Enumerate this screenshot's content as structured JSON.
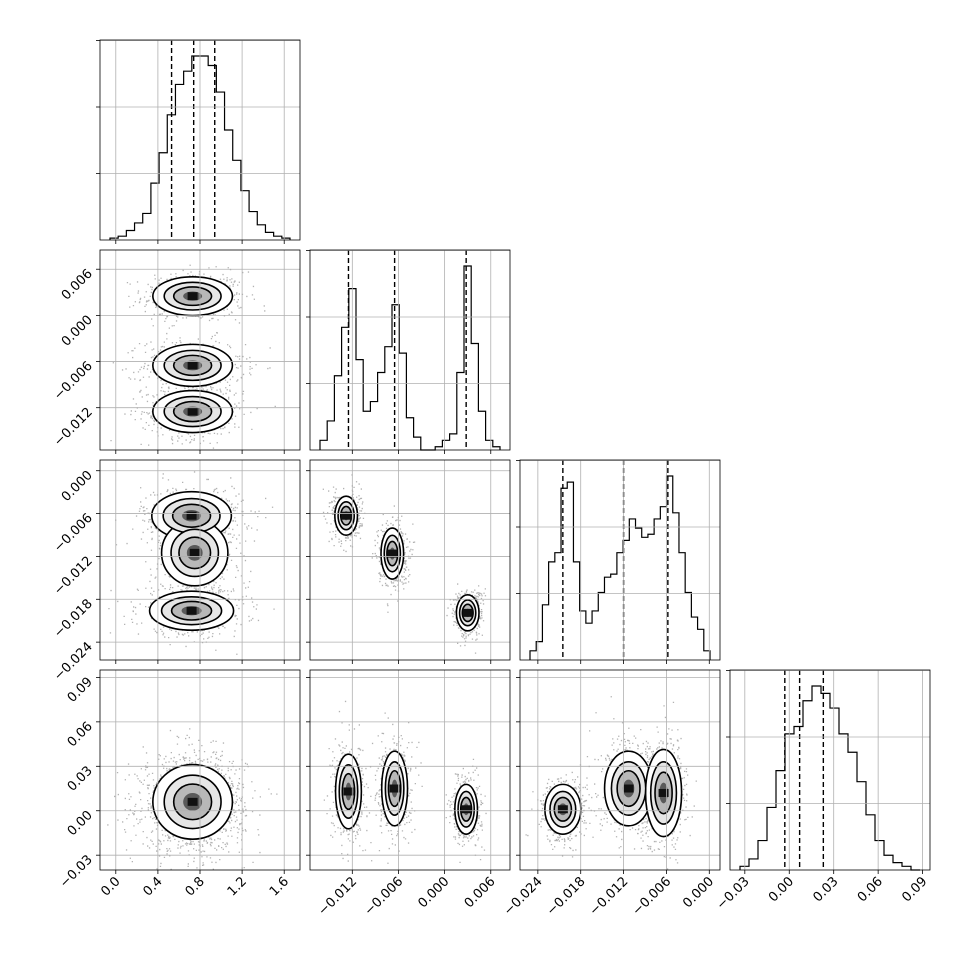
{
  "chart_data": {
    "type": "corner",
    "title": "",
    "n_params": 4,
    "grid": true,
    "parameters": [
      {
        "range": [
          -0.15,
          1.75
        ],
        "ticks": [
          "0.0",
          "0.4",
          "0.8",
          "1.2",
          "1.6"
        ],
        "tick_values": [
          0.0,
          0.4,
          0.8,
          1.2,
          1.6
        ],
        "quantiles": [
          0.53,
          0.74,
          0.94
        ]
      },
      {
        "range": [
          -0.0175,
          0.0085
        ],
        "ticks": [
          "−0.012",
          "−0.006",
          "0.000",
          "0.006"
        ],
        "tick_values": [
          -0.012,
          -0.006,
          0.0,
          0.006
        ],
        "quantiles": [
          -0.0125,
          -0.0065,
          0.0028
        ]
      },
      {
        "range": [
          -0.0265,
          0.0015
        ],
        "ticks": [
          "−0.024",
          "−0.018",
          "−0.012",
          "−0.006",
          "0.000"
        ],
        "tick_values": [
          -0.024,
          -0.018,
          -0.012,
          -0.006,
          0.0
        ],
        "quantiles": [
          -0.0205,
          -0.012,
          -0.0058
        ]
      },
      {
        "range": [
          -0.04,
          0.095
        ],
        "ticks": [
          "−0.03",
          "0.00",
          "0.03",
          "0.06",
          "0.09"
        ],
        "tick_values": [
          -0.03,
          0.0,
          0.03,
          0.06,
          0.09
        ],
        "quantiles": [
          -0.003,
          0.007,
          0.023
        ]
      }
    ],
    "histograms": [
      {
        "param": 0,
        "counts": [
          1,
          2,
          5,
          9,
          14,
          30,
          46,
          66,
          82,
          89,
          97,
          97,
          92,
          78,
          58,
          42,
          26,
          15,
          8,
          4,
          2,
          1
        ]
      },
      {
        "param": 1,
        "counts": [
          3,
          9,
          23,
          38,
          50,
          28,
          12,
          15,
          24,
          32,
          45,
          30,
          10,
          4,
          0,
          0,
          1,
          3,
          5,
          24,
          57,
          33,
          12,
          3,
          1
        ]
      },
      {
        "param": 2,
        "counts": [
          3,
          6,
          18,
          32,
          35,
          56,
          58,
          32,
          16,
          12,
          16,
          22,
          27,
          28,
          35,
          39,
          46,
          43,
          40,
          41,
          46,
          50,
          60,
          48,
          35,
          22,
          14,
          10,
          3
        ]
      },
      {
        "param": 3,
        "counts": [
          1,
          3,
          8,
          17,
          27,
          37,
          39,
          46,
          50,
          48,
          44,
          37,
          32,
          24,
          15,
          8,
          4,
          2,
          1,
          0
        ]
      }
    ],
    "joint_panels": [
      {
        "x": 0,
        "y": 1,
        "modes": [
          {
            "mx": 0.73,
            "my": 0.0025,
            "sx": 0.18,
            "sy": 0.0012,
            "w": 0.34
          },
          {
            "mx": 0.73,
            "my": -0.0065,
            "sx": 0.18,
            "sy": 0.0013,
            "w": 0.33
          },
          {
            "mx": 0.73,
            "my": -0.0125,
            "sx": 0.18,
            "sy": 0.0013,
            "w": 0.33
          }
        ]
      },
      {
        "x": 0,
        "y": 2,
        "modes": [
          {
            "mx": 0.72,
            "my": -0.0063,
            "sx": 0.18,
            "sy": 0.0016,
            "w": 0.34
          },
          {
            "mx": 0.75,
            "my": -0.0115,
            "sx": 0.15,
            "sy": 0.0022,
            "w": 0.28
          },
          {
            "mx": 0.72,
            "my": -0.0196,
            "sx": 0.19,
            "sy": 0.0013,
            "w": 0.38
          }
        ]
      },
      {
        "x": 0,
        "y": 3,
        "modes": [
          {
            "mx": 0.73,
            "my": 0.006,
            "sx": 0.18,
            "sy": 0.012,
            "w": 1.0
          }
        ]
      },
      {
        "x": 1,
        "y": 2,
        "modes": [
          {
            "mx": -0.0128,
            "my": -0.0063,
            "sx": 0.0007,
            "sy": 0.0013,
            "w": 0.34
          },
          {
            "mx": -0.0068,
            "my": -0.0116,
            "sx": 0.0007,
            "sy": 0.0017,
            "w": 0.33
          },
          {
            "mx": 0.003,
            "my": -0.0199,
            "sx": 0.0007,
            "sy": 0.0012,
            "w": 0.33
          }
        ]
      },
      {
        "x": 1,
        "y": 3,
        "modes": [
          {
            "mx": -0.0125,
            "my": 0.013,
            "sx": 0.0008,
            "sy": 0.012,
            "w": 0.34
          },
          {
            "mx": -0.0065,
            "my": 0.015,
            "sx": 0.0008,
            "sy": 0.012,
            "w": 0.33
          },
          {
            "mx": 0.0028,
            "my": 0.001,
            "sx": 0.0007,
            "sy": 0.008,
            "w": 0.33
          }
        ]
      },
      {
        "x": 2,
        "y": 3,
        "modes": [
          {
            "mx": -0.0205,
            "my": 0.001,
            "sx": 0.0012,
            "sy": 0.008,
            "w": 0.34
          },
          {
            "mx": -0.0113,
            "my": 0.015,
            "sx": 0.0016,
            "sy": 0.012,
            "w": 0.33
          },
          {
            "mx": -0.0064,
            "my": 0.012,
            "sx": 0.0012,
            "sy": 0.014,
            "w": 0.33
          }
        ]
      }
    ]
  },
  "colors": {
    "ink": "#000000",
    "grid": "#b0b0b0",
    "background": "#ffffff"
  }
}
